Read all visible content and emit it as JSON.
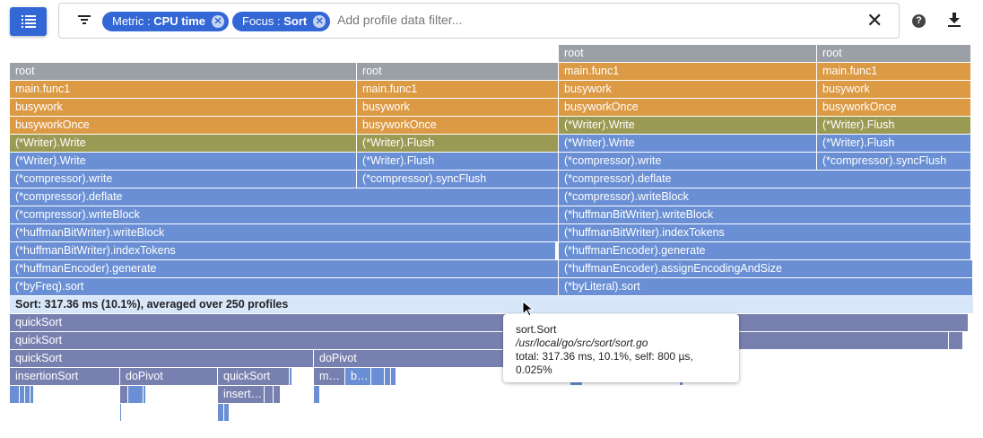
{
  "toolbar": {
    "menu_icon": "list-icon",
    "filter_icon": "filter-icon",
    "chips": [
      {
        "key": "Metric : ",
        "value": "CPU time"
      },
      {
        "key": "Focus : ",
        "value": "Sort"
      }
    ],
    "placeholder": "Add profile data filter...",
    "clear": "✕",
    "help": "?",
    "download_icon": "download-icon"
  },
  "colors": {
    "accent": "#3367d6",
    "root": "#9aa0a6",
    "app": "#dc9a45",
    "mixed": "#9b9a55",
    "lib": "#6a8fd4",
    "sort": "#7880b0",
    "highlight": "#d8e6fa"
  },
  "frames": [
    [
      "root",
      "root",
      "root",
      "root",
      "main.func1",
      "main.func1",
      "main.func1",
      "main.func1",
      "busywork",
      "busywork",
      "busywork",
      "busywork",
      "busyworkOnce",
      "busyworkOnce",
      "busyworkOnce",
      "busyworkOnce",
      "(*Writer).Write",
      "(*Writer).Flush",
      "(*Writer).Write",
      "(*Writer).Flush",
      "(*Writer).Write",
      "(*Writer).Flush",
      "(*Writer).Write",
      "(*Writer).Flush",
      "(*compressor).write",
      "(*compressor).syncFlush",
      "(*compressor).write",
      "(*compressor).syncFlush",
      "(*compressor).deflate",
      "(*compressor).deflate",
      "(*compressor).writeBlock",
      "(*compressor).writeBlock",
      "(*huffmanBitWriter).writeBlock",
      "(*huffmanBitWriter).writeBlock",
      "(*huffmanBitWriter).indexTokens",
      "(*huffmanBitWriter).indexTokens",
      "(*huffmanEncoder).generate",
      "(*huffmanEncoder).generate",
      "(*huffmanEncoder).assignEncodingAndSize",
      "(*byFreq).sort",
      "(*byLiteral).sort",
      "quickSort",
      "quickSort",
      "quickSort",
      "doPivot",
      "insertionSort",
      "doPivot",
      "quickSort",
      "me…",
      "by…",
      "inserti…"
    ]
  ],
  "focus_bar": "Sort: 317.36 ms (10.1%), averaged over 250 profiles",
  "tooltip": {
    "name": "sort.Sort",
    "file": "/usr/local/go/src/sort/sort.go",
    "stats": "total: 317.36 ms, 10.1%, self: 800 µs, 0.025%"
  }
}
